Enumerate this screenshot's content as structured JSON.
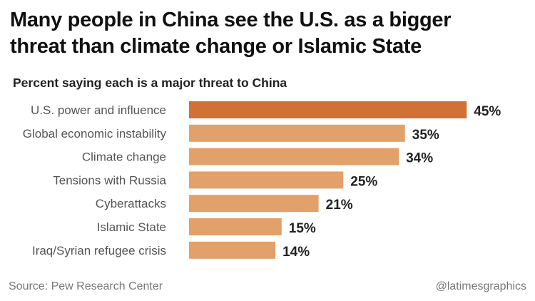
{
  "chart_data": {
    "type": "bar",
    "title": "Many people in China see the U.S. as a bigger threat than climate change or Islamic State",
    "title_lines": [
      "Many people in China see the U.S. as a bigger",
      "threat than climate change or Islamic State"
    ],
    "subtitle": "Percent saying each is a major threat to China",
    "categories": [
      "U.S. power and influence",
      "Global economic instability",
      "Climate change",
      "Tensions with Russia",
      "Cyberattacks",
      "Islamic State",
      "Iraq/Syrian refugee crisis"
    ],
    "values": [
      45,
      35,
      34,
      25,
      21,
      15,
      14
    ],
    "value_labels": [
      "45%",
      "35%",
      "34%",
      "25%",
      "21%",
      "15%",
      "14%"
    ],
    "xlabel": "",
    "ylabel": "",
    "xlim": [
      0,
      45
    ],
    "colors": {
      "highlight": "#D07236",
      "default": "#E2A06A"
    },
    "highlight_index": 0
  },
  "source": "Source: Pew Research Center",
  "credit": "@latimesgraphics"
}
